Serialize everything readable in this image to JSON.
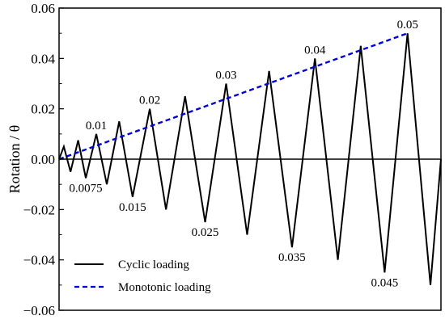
{
  "chart_data": {
    "type": "line",
    "ylabel": "Rotation / θ",
    "ylim": [
      -0.06,
      0.06
    ],
    "yticks": [
      0.06,
      0.04,
      0.02,
      0.0,
      -0.02,
      -0.04,
      -0.06
    ],
    "ytick_labels": [
      "0.06",
      "0.04",
      "0.02",
      "0.00",
      "−0.02",
      "−0.04",
      "−0.06"
    ],
    "grid": false,
    "legend_position": "bottom-left",
    "series": [
      {
        "name": "Cyclic loading",
        "style": "solid",
        "color": "#000000",
        "points": [
          [
            0,
            0
          ],
          [
            0.5,
            0.005
          ],
          [
            1.2,
            -0.005
          ],
          [
            2.0,
            0.0075
          ],
          [
            2.8,
            -0.0075
          ],
          [
            3.9,
            0.01
          ],
          [
            5.0,
            -0.01
          ],
          [
            6.3,
            0.015
          ],
          [
            7.7,
            -0.015
          ],
          [
            9.5,
            0.02
          ],
          [
            11.2,
            -0.02
          ],
          [
            13.2,
            0.025
          ],
          [
            15.3,
            -0.025
          ],
          [
            17.5,
            0.03
          ],
          [
            19.7,
            -0.03
          ],
          [
            22.0,
            0.035
          ],
          [
            24.4,
            -0.035
          ],
          [
            26.8,
            0.04
          ],
          [
            29.2,
            -0.04
          ],
          [
            31.6,
            0.045
          ],
          [
            34.1,
            -0.045
          ],
          [
            36.5,
            0.05
          ],
          [
            38.9,
            -0.05
          ],
          [
            40.0,
            0.0
          ]
        ]
      },
      {
        "name": "Monotonic loading",
        "style": "dashed",
        "color": "#0000dd",
        "points": [
          [
            0,
            0
          ],
          [
            36.5,
            0.05
          ]
        ]
      }
    ],
    "annotations": [
      {
        "text": "0.01",
        "x": 3.9,
        "y": 0.01
      },
      {
        "text": "0.0075",
        "x": 2.8,
        "y": -0.0075
      },
      {
        "text": "0.015",
        "x": 7.7,
        "y": -0.015
      },
      {
        "text": "0.02",
        "x": 9.5,
        "y": 0.02
      },
      {
        "text": "0.025",
        "x": 15.3,
        "y": -0.025
      },
      {
        "text": "0.03",
        "x": 17.5,
        "y": 0.03
      },
      {
        "text": "0.035",
        "x": 24.4,
        "y": -0.035
      },
      {
        "text": "0.04",
        "x": 26.8,
        "y": 0.04
      },
      {
        "text": "0.045",
        "x": 34.1,
        "y": -0.045
      },
      {
        "text": "0.05",
        "x": 36.5,
        "y": 0.05
      }
    ]
  },
  "legend": {
    "cyclic_label": "Cyclic loading",
    "monotonic_label": "Monotonic loading"
  }
}
